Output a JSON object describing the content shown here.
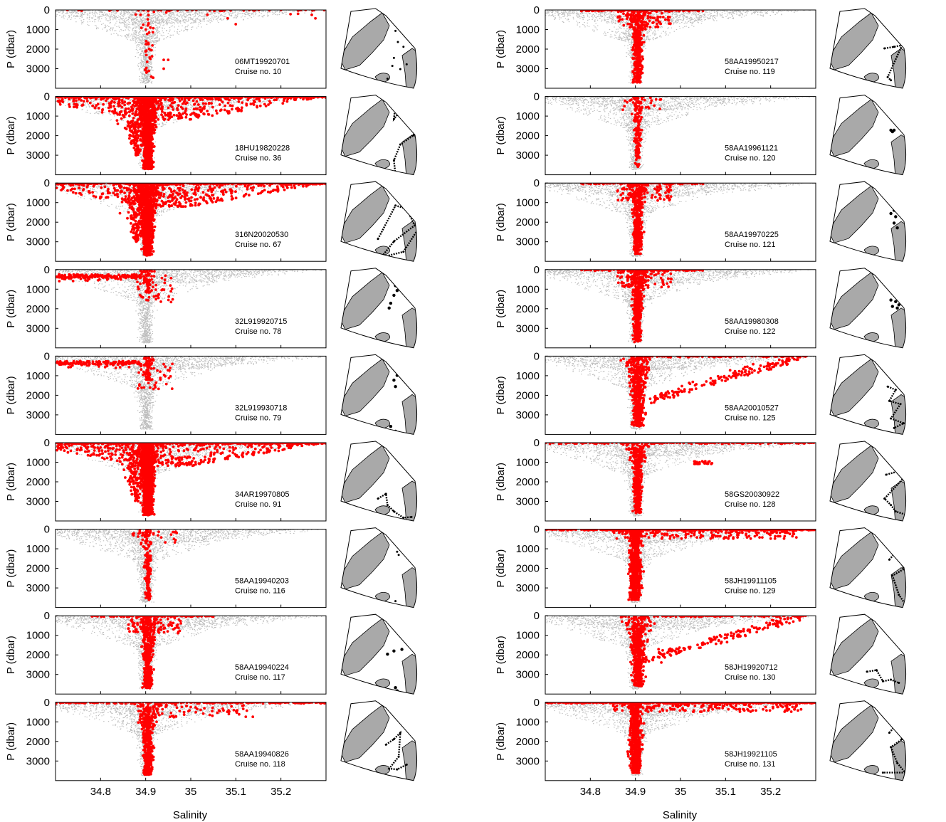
{
  "chart_data": {
    "type": "scatter",
    "layout": "2 columns x 9 rows of salinity-pressure panels, each with a map inset",
    "xlabel": "Salinity",
    "ylabel": "P (dbar)",
    "x_ticks": [
      "34.8",
      "34.9",
      "35",
      "35.1",
      "35.2"
    ],
    "y_ticks": [
      "0",
      "1000",
      "2000",
      "3000"
    ],
    "xlim": [
      34.7,
      35.3
    ],
    "ylim": [
      4000,
      0
    ],
    "y_inverted": true,
    "background_series_color": "#bdbdbd",
    "cruise_series_color": "#ff0000",
    "map_land_color": "#a9a9a9",
    "map_track_color": "#000000",
    "panels": [
      {
        "id": "06MT19920701",
        "cruise": "Cruise no. 10",
        "col": 0,
        "row": 0,
        "pattern": "sparse_deep",
        "track": {
          "type": "stations",
          "points": [
            [
              0.72,
              0.28
            ],
            [
              0.75,
              0.42
            ],
            [
              0.82,
              0.48
            ],
            [
              0.7,
              0.62
            ],
            [
              0.68,
              0.72
            ],
            [
              0.78,
              0.76
            ],
            [
              0.62,
              0.88
            ],
            [
              0.86,
              0.7
            ],
            [
              0.58,
              0.95
            ]
          ]
        }
      },
      {
        "id": "18HU19820228",
        "cruise": "Cruise no. 36",
        "col": 0,
        "row": 1,
        "pattern": "dense_wide",
        "track": {
          "type": "lines",
          "points": [
            [
              0.72,
              0.1
            ],
            [
              0.7,
              0.3
            ],
            [
              0.8,
              0.18
            ],
            [
              0.92,
              0.28
            ],
            [
              0.95,
              0.5
            ],
            [
              0.78,
              0.62
            ],
            [
              0.7,
              0.82
            ],
            [
              0.72,
              1.0
            ]
          ]
        }
      },
      {
        "id": "316N20020530",
        "cruise": "Cruise no. 67",
        "col": 0,
        "row": 2,
        "pattern": "dense_wide",
        "track": {
          "type": "lines",
          "points": [
            [
              0.5,
              0.72
            ],
            [
              0.72,
              0.3
            ],
            [
              0.86,
              0.34
            ],
            [
              0.96,
              0.55
            ],
            [
              0.7,
              0.75
            ],
            [
              0.54,
              0.95
            ],
            [
              0.82,
              0.88
            ],
            [
              1.0,
              0.6
            ]
          ]
        }
      },
      {
        "id": "32L919920715",
        "cruise": "Cruise no. 78",
        "col": 0,
        "row": 3,
        "pattern": "shelf_fresh",
        "track": {
          "type": "cluster",
          "points": [
            [
              0.72,
              0.22
            ],
            [
              0.74,
              0.28
            ],
            [
              0.7,
              0.34
            ],
            [
              0.66,
              0.44
            ],
            [
              0.64,
              0.5
            ]
          ]
        }
      },
      {
        "id": "32L919930718",
        "cruise": "Cruise no. 79",
        "col": 0,
        "row": 4,
        "pattern": "shelf_fresh",
        "track": {
          "type": "cluster",
          "points": [
            [
              0.72,
              0.2
            ],
            [
              0.74,
              0.26
            ],
            [
              0.7,
              0.32
            ],
            [
              0.72,
              0.4
            ],
            [
              0.66,
              0.9
            ],
            [
              0.72,
              0.96
            ]
          ]
        }
      },
      {
        "id": "34AR19970805",
        "cruise": "Cruise no. 91",
        "col": 0,
        "row": 5,
        "pattern": "dense_wide",
        "track": {
          "type": "lines",
          "points": [
            [
              0.5,
              0.72
            ],
            [
              0.6,
              0.66
            ],
            [
              0.62,
              0.8
            ],
            [
              0.7,
              0.88
            ],
            [
              0.82,
              0.96
            ],
            [
              0.92,
              0.95
            ]
          ]
        }
      },
      {
        "id": "58AA19940203",
        "cruise": "Cruise no. 116",
        "col": 0,
        "row": 6,
        "pattern": "narrow_column",
        "track": {
          "type": "stations",
          "points": [
            [
              0.74,
              0.3
            ],
            [
              0.76,
              0.34
            ],
            [
              0.72,
              0.92
            ]
          ]
        }
      },
      {
        "id": "58AA19940224",
        "cruise": "Cruise no. 117",
        "col": 0,
        "row": 7,
        "pattern": "column",
        "track": {
          "type": "cluster",
          "points": [
            [
              0.62,
              0.5
            ],
            [
              0.7,
              0.46
            ],
            [
              0.8,
              0.44
            ],
            [
              0.72,
              0.92
            ],
            [
              0.74,
              0.96
            ]
          ]
        }
      },
      {
        "id": "58AA19940826",
        "cruise": "Cruise no. 118",
        "col": 0,
        "row": 8,
        "pattern": "column_wide",
        "track": {
          "type": "lines",
          "points": [
            [
              0.6,
              0.55
            ],
            [
              0.7,
              0.48
            ],
            [
              0.78,
              0.4
            ],
            [
              0.76,
              0.7
            ],
            [
              0.64,
              0.85
            ],
            [
              0.74,
              0.86
            ],
            [
              0.86,
              0.8
            ]
          ]
        }
      },
      {
        "id": "58AA19950217",
        "cruise": "Cruise no. 119",
        "col": 1,
        "row": 0,
        "pattern": "column",
        "track": {
          "type": "lines",
          "points": [
            [
              0.72,
              0.5
            ],
            [
              0.84,
              0.48
            ],
            [
              0.94,
              0.46
            ],
            [
              0.76,
              0.86
            ],
            [
              0.8,
              0.9
            ]
          ]
        }
      },
      {
        "id": "58AA19961121",
        "cruise": "Cruise no. 120",
        "col": 1,
        "row": 1,
        "pattern": "narrow_column",
        "track": {
          "type": "cluster",
          "points": [
            [
              0.8,
              0.44
            ],
            [
              0.84,
              0.44
            ],
            [
              0.82,
              0.46
            ]
          ]
        }
      },
      {
        "id": "58AA19970225",
        "cruise": "Cruise no. 121",
        "col": 1,
        "row": 2,
        "pattern": "column",
        "track": {
          "type": "cluster",
          "points": [
            [
              0.8,
              0.4
            ],
            [
              0.84,
              0.36
            ],
            [
              0.86,
              0.44
            ],
            [
              0.84,
              0.52
            ],
            [
              0.88,
              0.58
            ]
          ]
        }
      },
      {
        "id": "58AA19980308",
        "cruise": "Cruise no. 122",
        "col": 1,
        "row": 3,
        "pattern": "column",
        "track": {
          "type": "cluster",
          "points": [
            [
              0.8,
              0.4
            ],
            [
              0.86,
              0.42
            ],
            [
              0.9,
              0.46
            ],
            [
              0.82,
              0.48
            ],
            [
              0.88,
              0.5
            ]
          ]
        }
      },
      {
        "id": "58AA20010527",
        "cruise": "Cruise no. 125",
        "col": 1,
        "row": 4,
        "pattern": "column_spread",
        "track": {
          "type": "lines",
          "points": [
            [
              0.76,
              0.4
            ],
            [
              0.86,
              0.44
            ],
            [
              0.78,
              0.58
            ],
            [
              0.92,
              0.62
            ],
            [
              0.8,
              0.8
            ],
            [
              0.96,
              0.86
            ],
            [
              0.84,
              0.92
            ]
          ]
        }
      },
      {
        "id": "58GS20030922",
        "cruise": "Cruise no. 128",
        "col": 1,
        "row": 5,
        "pattern": "column_surface",
        "track": {
          "type": "lines",
          "points": [
            [
              0.74,
              0.42
            ],
            [
              0.88,
              0.38
            ],
            [
              0.96,
              0.46
            ],
            [
              0.72,
              0.72
            ],
            [
              0.8,
              0.8
            ],
            [
              0.86,
              0.88
            ],
            [
              0.98,
              0.92
            ]
          ]
        }
      },
      {
        "id": "58JH19911105",
        "cruise": "Cruise no. 129",
        "col": 1,
        "row": 6,
        "pattern": "gridded_wide",
        "track": {
          "type": "lines",
          "points": [
            [
              0.78,
              0.4
            ],
            [
              0.88,
              0.28
            ],
            [
              0.96,
              0.52
            ],
            [
              0.82,
              0.6
            ],
            [
              0.9,
              0.84
            ],
            [
              0.98,
              0.96
            ]
          ]
        }
      },
      {
        "id": "58JH19920712",
        "cruise": "Cruise no. 130",
        "col": 1,
        "row": 7,
        "pattern": "column_spread",
        "track": {
          "type": "lines",
          "points": [
            [
              0.5,
              0.72
            ],
            [
              0.62,
              0.7
            ],
            [
              0.7,
              0.84
            ],
            [
              0.8,
              0.82
            ],
            [
              0.9,
              0.86
            ]
          ]
        }
      },
      {
        "id": "58JH19921105",
        "cruise": "Cruise no. 131",
        "col": 1,
        "row": 8,
        "pattern": "gridded_wide",
        "track": {
          "type": "lines",
          "points": [
            [
              0.78,
              0.4
            ],
            [
              0.88,
              0.28
            ],
            [
              0.94,
              0.48
            ],
            [
              0.8,
              0.58
            ],
            [
              0.88,
              0.78
            ],
            [
              0.98,
              0.9
            ],
            [
              0.7,
              0.9
            ]
          ]
        }
      }
    ]
  }
}
